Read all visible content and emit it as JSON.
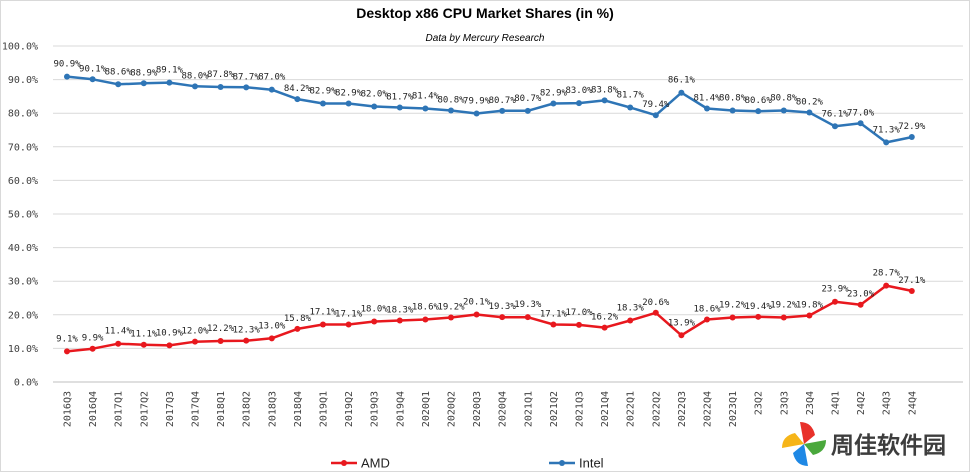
{
  "chart_data": {
    "type": "line",
    "title": "Desktop x86 CPU Market Shares (in %)",
    "subtitle": "Data by Mercury Research",
    "xlabel": "",
    "ylabel": "",
    "ylim": [
      0,
      100
    ],
    "y_ticks": [
      "0.0%",
      "10.0%",
      "20.0%",
      "30.0%",
      "40.0%",
      "50.0%",
      "60.0%",
      "70.0%",
      "80.0%",
      "90.0%",
      "100.0%"
    ],
    "grid": "horizontal",
    "legend_position": "bottom",
    "data_label_suffix": "%",
    "categories": [
      "2016Q3",
      "2016Q4",
      "2017Q1",
      "2017Q2",
      "2017Q3",
      "2017Q4",
      "2018Q1",
      "2018Q2",
      "2018Q3",
      "2018Q4",
      "2019Q1",
      "2019Q2",
      "2019Q3",
      "2019Q4",
      "2020Q1",
      "2020Q2",
      "2020Q3",
      "2020Q4",
      "2021Q1",
      "2021Q2",
      "2021Q3",
      "2021Q4",
      "2022Q1",
      "2022Q2",
      "2022Q3",
      "2022Q4",
      "2023Q1",
      "23Q2",
      "23Q3",
      "23Q4",
      "24Q1",
      "24Q2",
      "24Q3",
      "24Q4"
    ],
    "series": [
      {
        "name": "Intel",
        "color": "#2e75b6",
        "values": [
          90.9,
          90.1,
          88.6,
          88.9,
          89.1,
          88.0,
          87.8,
          87.7,
          87.0,
          84.2,
          82.9,
          82.9,
          82.0,
          81.7,
          81.4,
          80.8,
          79.9,
          80.7,
          80.7,
          82.9,
          83.0,
          83.8,
          81.7,
          79.4,
          86.1,
          81.4,
          80.8,
          80.6,
          80.8,
          80.2,
          76.1,
          77.0,
          71.3,
          72.9
        ]
      },
      {
        "name": "AMD",
        "color": "#e8181e",
        "values": [
          9.1,
          9.9,
          11.4,
          11.1,
          10.9,
          12.0,
          12.2,
          12.3,
          13.0,
          15.8,
          17.1,
          17.1,
          18.0,
          18.3,
          18.6,
          19.2,
          20.1,
          19.3,
          19.3,
          17.1,
          17.0,
          16.2,
          18.3,
          20.6,
          13.9,
          18.6,
          19.2,
          19.4,
          19.2,
          19.8,
          23.9,
          23.0,
          28.7,
          27.1
        ]
      }
    ],
    "legend": [
      {
        "name": "AMD",
        "color": "#e8181e"
      },
      {
        "name": "Intel",
        "color": "#2e75b6"
      }
    ]
  },
  "watermark": {
    "text": "周佳软件园",
    "logo_icon": "pinwheel-logo-icon"
  }
}
